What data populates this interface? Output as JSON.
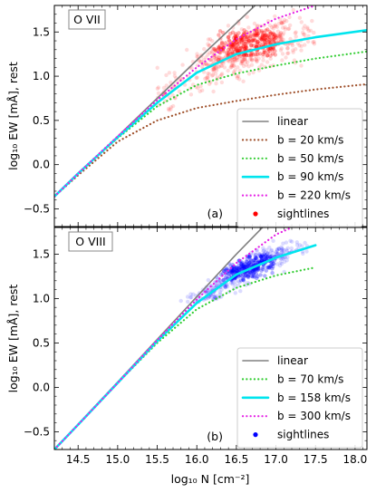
{
  "chart_data": [
    {
      "type": "line",
      "panel_tag": "O VII",
      "panel_label": "(a)",
      "xlim": [
        14.2,
        18.15
      ],
      "ylim": [
        -0.7,
        1.8
      ],
      "x_ticks": [
        14.5,
        15.0,
        15.5,
        16.0,
        16.5,
        17.0,
        17.5,
        18.0
      ],
      "x_tick_labels": [
        "14.5",
        "15.0",
        "15.5",
        "16.0",
        "16.5",
        "17.0",
        "17.5",
        "18.0"
      ],
      "y_ticks": [
        -0.5,
        0.0,
        0.5,
        1.0,
        1.5
      ],
      "y_tick_labels": [
        "−0.5",
        "0.0",
        "0.5",
        "1.0",
        "1.5"
      ],
      "ylabel": "log₁₀ EW [mÅ], rest",
      "xlabel": "",
      "legend_placement": "lower-right",
      "grid": false,
      "series": [
        {
          "name": "linear",
          "style": "solid",
          "color": "#808080",
          "x": [
            14.2,
            15.0,
            15.5,
            16.0,
            16.5,
            16.95
          ],
          "y": [
            -0.36,
            0.32,
            0.75,
            1.18,
            1.6,
            1.98
          ]
        },
        {
          "name": "b = 20 km/s",
          "style": "dotted",
          "color": "#a0522d",
          "x": [
            14.2,
            14.5,
            15.0,
            15.5,
            16.0,
            16.5,
            17.0,
            17.5,
            18.15
          ],
          "y": [
            -0.36,
            -0.12,
            0.26,
            0.5,
            0.64,
            0.72,
            0.79,
            0.85,
            0.91
          ]
        },
        {
          "name": "b = 50 km/s",
          "style": "dotted",
          "color": "#32cd32",
          "x": [
            14.2,
            14.5,
            15.0,
            15.5,
            16.0,
            16.5,
            17.0,
            17.5,
            18.15
          ],
          "y": [
            -0.36,
            -0.1,
            0.3,
            0.66,
            0.9,
            1.03,
            1.12,
            1.2,
            1.28
          ]
        },
        {
          "name": "b = 90 km/s",
          "style": "solid",
          "color": "#00e5ee",
          "x": [
            14.2,
            14.5,
            15.0,
            15.5,
            16.0,
            16.5,
            17.0,
            17.5,
            18.15
          ],
          "y": [
            -0.36,
            -0.1,
            0.31,
            0.7,
            1.04,
            1.25,
            1.36,
            1.44,
            1.52
          ]
        },
        {
          "name": "b = 220 km/s",
          "style": "dotted",
          "color": "#e621e6",
          "x": [
            14.2,
            14.5,
            15.0,
            15.5,
            16.0,
            16.5,
            17.0,
            17.5
          ],
          "y": [
            -0.36,
            -0.1,
            0.32,
            0.73,
            1.1,
            1.42,
            1.65,
            1.8
          ]
        }
      ],
      "scatter": {
        "name": "sightlines",
        "color": "#ff0000",
        "center": {
          "x": 16.6,
          "y": 1.38
        },
        "x_range": [
          15.5,
          17.5
        ],
        "y_range": [
          0.6,
          1.75
        ]
      }
    },
    {
      "type": "line",
      "panel_tag": "O VIII",
      "panel_label": "(b)",
      "xlim": [
        14.2,
        18.15
      ],
      "ylim": [
        -0.7,
        1.8
      ],
      "x_ticks": [
        14.5,
        15.0,
        15.5,
        16.0,
        16.5,
        17.0,
        17.5,
        18.0
      ],
      "x_tick_labels": [
        "14.5",
        "15.0",
        "15.5",
        "16.0",
        "16.5",
        "17.0",
        "17.5",
        "18.0"
      ],
      "y_ticks": [
        -0.5,
        0.0,
        0.5,
        1.0,
        1.5
      ],
      "y_tick_labels": [
        "−0.5",
        "0.0",
        "0.5",
        "1.0",
        "1.5"
      ],
      "ylabel": "log₁₀ EW [mÅ], rest",
      "xlabel": "log₁₀ N [cm⁻²]",
      "legend_placement": "lower-right",
      "grid": false,
      "series": [
        {
          "name": "linear",
          "style": "solid",
          "color": "#808080",
          "x": [
            14.2,
            15.0,
            15.5,
            16.0,
            16.5,
            17.05
          ],
          "y": [
            -0.7,
            0.06,
            0.54,
            1.02,
            1.5,
            2.0
          ]
        },
        {
          "name": "b = 70 km/s",
          "style": "dotted",
          "color": "#32cd32",
          "x": [
            14.2,
            14.5,
            15.0,
            15.5,
            16.0,
            16.5,
            17.0,
            17.5
          ],
          "y": [
            -0.7,
            -0.42,
            0.05,
            0.5,
            0.88,
            1.12,
            1.26,
            1.35
          ]
        },
        {
          "name": "b = 158 km/s",
          "style": "solid",
          "color": "#00e5ee",
          "x": [
            14.2,
            14.5,
            15.0,
            15.5,
            16.0,
            16.5,
            17.0,
            17.5
          ],
          "y": [
            -0.7,
            -0.42,
            0.05,
            0.52,
            0.95,
            1.27,
            1.46,
            1.6
          ]
        },
        {
          "name": "b = 300 km/s",
          "style": "dotted",
          "color": "#e621e6",
          "x": [
            14.2,
            14.5,
            15.0,
            15.5,
            16.0,
            16.5,
            17.0,
            17.2
          ],
          "y": [
            -0.7,
            -0.42,
            0.05,
            0.53,
            0.99,
            1.4,
            1.72,
            1.8
          ]
        }
      ],
      "scatter": {
        "name": "sightlines",
        "color": "#0000ff",
        "center": {
          "x": 16.6,
          "y": 1.35
        },
        "x_range": [
          15.7,
          17.4
        ],
        "y_range": [
          0.95,
          1.65
        ]
      }
    }
  ]
}
